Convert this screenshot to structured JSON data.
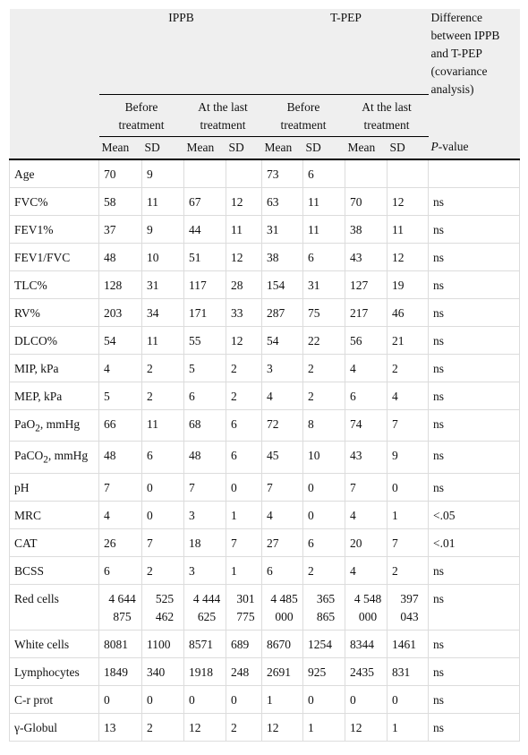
{
  "header": {
    "groups": [
      {
        "title": "IPPB",
        "subgroups": [
          "Before treatment",
          "At the last treatment"
        ]
      },
      {
        "title": "T-PEP",
        "subgroups": [
          "Before treatment",
          "At the last treatment"
        ]
      }
    ],
    "difference_title": "Difference between IPPB and T-PEP (covariance analysis)",
    "columns": [
      "Mean",
      "SD",
      "Mean",
      "SD",
      "Mean",
      "SD",
      "Mean",
      "SD"
    ],
    "p_value": {
      "italic": "P",
      "text": "-value"
    }
  },
  "table": {
    "rows": [
      {
        "label": "Age",
        "values": [
          70,
          9,
          null,
          null,
          73,
          6,
          null,
          null
        ],
        "p": null
      },
      {
        "label": "FVC%",
        "values": [
          58,
          11,
          67,
          12,
          63,
          11,
          70,
          12
        ],
        "p": "ns"
      },
      {
        "label": "FEV1%",
        "values": [
          37,
          9,
          44,
          11,
          31,
          11,
          38,
          11
        ],
        "p": "ns"
      },
      {
        "label": "FEV1/FVC",
        "values": [
          48,
          10,
          51,
          12,
          38,
          6,
          43,
          12
        ],
        "p": "ns"
      },
      {
        "label": "TLC%",
        "values": [
          128,
          31,
          117,
          28,
          154,
          31,
          127,
          19
        ],
        "p": "ns"
      },
      {
        "label": "RV%",
        "values": [
          203,
          34,
          171,
          33,
          287,
          75,
          217,
          46
        ],
        "p": "ns"
      },
      {
        "label": "DLCO%",
        "values": [
          54,
          11,
          55,
          12,
          54,
          22,
          56,
          21
        ],
        "p": "ns"
      },
      {
        "label": "MIP, kPa",
        "values": [
          4,
          2,
          5,
          2,
          3,
          2,
          4,
          2
        ],
        "p": "ns"
      },
      {
        "label": "MEP, kPa",
        "values": [
          5,
          2,
          6,
          2,
          4,
          2,
          6,
          4
        ],
        "p": "ns"
      },
      {
        "label": {
          "text": "PaO",
          "sub": "2",
          "rest": ", mmHg"
        },
        "values": [
          66,
          11,
          68,
          6,
          72,
          8,
          74,
          7
        ],
        "p": "ns"
      },
      {
        "label": {
          "text": "PaCO",
          "sub": "2",
          "rest": ", mmHg"
        },
        "values": [
          48,
          6,
          48,
          6,
          45,
          10,
          43,
          9
        ],
        "p": "ns"
      },
      {
        "label": "pH",
        "values": [
          7,
          0,
          7,
          0,
          7,
          0,
          7,
          0
        ],
        "p": "ns"
      },
      {
        "label": "MRC",
        "values": [
          4,
          0,
          3,
          1,
          4,
          0,
          4,
          1
        ],
        "p": "<.05"
      },
      {
        "label": "CAT",
        "values": [
          26,
          7,
          18,
          7,
          27,
          6,
          20,
          7
        ],
        "p": "<.01"
      },
      {
        "label": "BCSS",
        "values": [
          6,
          2,
          3,
          1,
          6,
          2,
          4,
          2
        ],
        "p": "ns"
      },
      {
        "label": "Red cells",
        "values": [
          "4 644 875",
          "525 462",
          "4 444 625",
          "301 775",
          "4 485 000",
          "365 865",
          "4 548 000",
          "397 043"
        ],
        "p": "ns"
      },
      {
        "label": "White cells",
        "values": [
          8081,
          1100,
          8571,
          689,
          8670,
          1254,
          8344,
          1461
        ],
        "p": "ns"
      },
      {
        "label": "Lymphocytes",
        "values": [
          1849,
          340,
          1918,
          248,
          2691,
          925,
          2435,
          831
        ],
        "p": "ns"
      },
      {
        "label": "C-r prot",
        "values": [
          0,
          0,
          0,
          0,
          1,
          0,
          0,
          0
        ],
        "p": "ns"
      },
      {
        "label": "γ-Globul",
        "values": [
          13,
          2,
          12,
          2,
          12,
          1,
          12,
          1
        ],
        "p": "ns"
      }
    ]
  }
}
